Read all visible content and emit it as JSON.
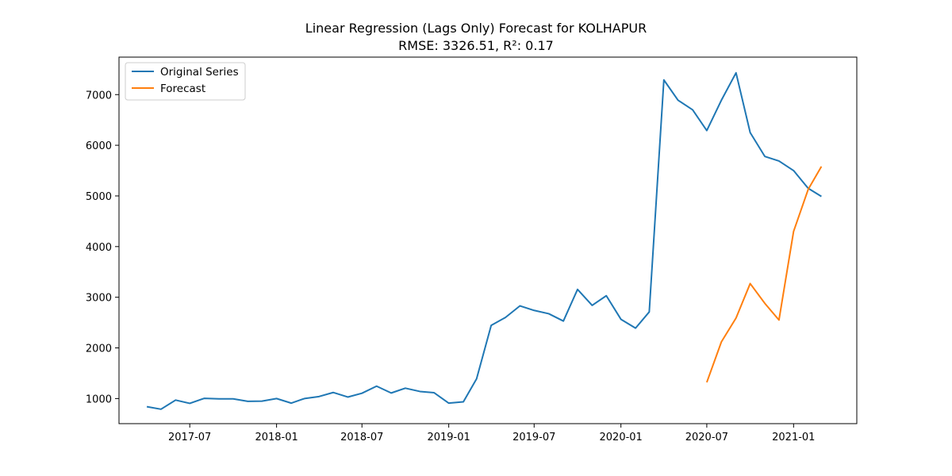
{
  "chart_data": {
    "type": "line",
    "title": "Linear Regression (Lags Only) Forecast for KOLHAPUR",
    "subtitle": "RMSE: 3326.51, R²: 0.17",
    "xlabel": "",
    "ylabel": "",
    "x_ticks": [
      "2017-07",
      "2018-01",
      "2018-07",
      "2019-01",
      "2019-07",
      "2020-01",
      "2020-07",
      "2021-01"
    ],
    "y_ticks": [
      1000,
      2000,
      3000,
      4000,
      5000,
      6000,
      7000
    ],
    "legend_position": "top-left",
    "grid": false,
    "series": [
      {
        "name": "Original Series",
        "color": "#1f77b4",
        "points": [
          [
            "2017-04",
            840
          ],
          [
            "2017-05",
            790
          ],
          [
            "2017-06",
            970
          ],
          [
            "2017-07",
            905
          ],
          [
            "2017-08",
            1005
          ],
          [
            "2017-09",
            995
          ],
          [
            "2017-10",
            995
          ],
          [
            "2017-11",
            945
          ],
          [
            "2017-12",
            950
          ],
          [
            "2018-01",
            1000
          ],
          [
            "2018-02",
            910
          ],
          [
            "2018-03",
            1000
          ],
          [
            "2018-04",
            1040
          ],
          [
            "2018-05",
            1120
          ],
          [
            "2018-06",
            1030
          ],
          [
            "2018-07",
            1105
          ],
          [
            "2018-08",
            1245
          ],
          [
            "2018-09",
            1110
          ],
          [
            "2018-10",
            1205
          ],
          [
            "2018-11",
            1140
          ],
          [
            "2018-12",
            1115
          ],
          [
            "2019-01",
            910
          ],
          [
            "2019-02",
            935
          ],
          [
            "2019-03",
            1390
          ],
          [
            "2019-04",
            2445
          ],
          [
            "2019-05",
            2600
          ],
          [
            "2019-06",
            2830
          ],
          [
            "2019-07",
            2740
          ],
          [
            "2019-08",
            2675
          ],
          [
            "2019-09",
            2530
          ],
          [
            "2019-10",
            3155
          ],
          [
            "2019-11",
            2840
          ],
          [
            "2019-12",
            3030
          ],
          [
            "2020-01",
            2565
          ],
          [
            "2020-02",
            2390
          ],
          [
            "2020-03",
            2710
          ],
          [
            "2020-04",
            7290
          ],
          [
            "2020-05",
            6890
          ],
          [
            "2020-06",
            6700
          ],
          [
            "2020-07",
            6290
          ],
          [
            "2020-08",
            6890
          ],
          [
            "2020-09",
            7430
          ],
          [
            "2020-10",
            6250
          ],
          [
            "2020-11",
            5780
          ],
          [
            "2020-12",
            5690
          ],
          [
            "2021-01",
            5500
          ],
          [
            "2021-02",
            5150
          ],
          [
            "2021-03",
            4990
          ]
        ]
      },
      {
        "name": "Forecast",
        "color": "#ff7f0e",
        "points": [
          [
            "2020-07",
            1320
          ],
          [
            "2020-08",
            2120
          ],
          [
            "2020-09",
            2590
          ],
          [
            "2020-10",
            3270
          ],
          [
            "2020-11",
            2880
          ],
          [
            "2020-12",
            2550
          ],
          [
            "2021-01",
            4300
          ],
          [
            "2021-02",
            5130
          ],
          [
            "2021-03",
            5580
          ]
        ]
      }
    ],
    "xlim": [
      "2017-02-01",
      "2021-05-15"
    ],
    "ylim": [
      505,
      7740
    ]
  }
}
